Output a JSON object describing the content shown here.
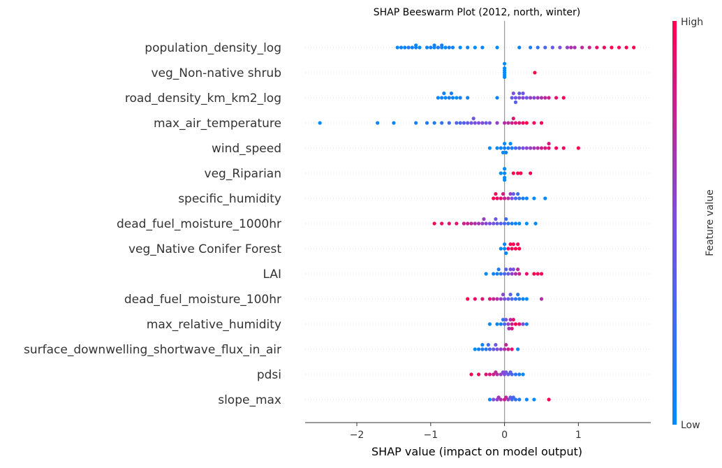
{
  "chart_data": {
    "type": "scatter",
    "title": "SHAP Beeswarm Plot (2012, north, winter)",
    "xlabel": "SHAP value (impact on model output)",
    "xlim": [
      -2.7,
      1.98
    ],
    "x_ticks": [
      -2,
      -1,
      0,
      1
    ],
    "x_tick_labels": [
      "−2",
      "−1",
      "0",
      "1"
    ],
    "colorbar": {
      "label": "Feature value",
      "high_label": "High",
      "low_label": "Low",
      "low_color": "#008afb",
      "mid_color": "#7a4fe0",
      "high_color": "#ff0051"
    },
    "zero_line_color": "#999999",
    "features": [
      {
        "name": "population_density_log",
        "points": [
          [
            -1.45,
            0.0
          ],
          [
            -1.4,
            0.1
          ],
          [
            -1.35,
            0.0
          ],
          [
            -1.3,
            0.15
          ],
          [
            -1.25,
            0.05
          ],
          [
            -1.2,
            0.1
          ],
          [
            -1.15,
            0.0
          ],
          [
            -1.05,
            0.05
          ],
          [
            -1.0,
            0.1
          ],
          [
            -0.95,
            0.0
          ],
          [
            -0.9,
            0.15
          ],
          [
            -0.85,
            0.05
          ],
          [
            -0.8,
            0.0
          ],
          [
            -0.75,
            0.1
          ],
          [
            -0.7,
            0.05
          ],
          [
            -0.6,
            0.0
          ],
          [
            -0.5,
            0.05
          ],
          [
            -0.4,
            0.0
          ],
          [
            -0.3,
            0.05
          ],
          [
            -0.1,
            0.0
          ],
          [
            0.2,
            0.05
          ],
          [
            0.35,
            0.1
          ],
          [
            0.45,
            0.2
          ],
          [
            0.55,
            0.3
          ],
          [
            0.65,
            0.4
          ],
          [
            0.75,
            0.5
          ],
          [
            0.85,
            0.6
          ],
          [
            0.95,
            0.65
          ],
          [
            1.05,
            0.75
          ],
          [
            1.15,
            0.8
          ],
          [
            1.25,
            0.9
          ],
          [
            1.35,
            0.95
          ],
          [
            1.45,
            1.0
          ],
          [
            1.55,
            0.95
          ],
          [
            1.65,
            1.0
          ],
          [
            1.75,
            1.0
          ],
          [
            -1.2,
            0.0
          ],
          [
            -0.95,
            0.05
          ],
          [
            -0.85,
            0.1
          ],
          [
            0.9,
            0.7
          ]
        ]
      },
      {
        "name": "veg_Non-native shrub ",
        "points": [
          [
            0.0,
            0.0
          ],
          [
            0.0,
            0.0
          ],
          [
            0.0,
            0.0
          ],
          [
            0.0,
            0.0
          ],
          [
            0.0,
            0.0
          ],
          [
            0.0,
            0.0
          ],
          [
            0.41,
            1.0
          ]
        ]
      },
      {
        "name": "road_density_km_km2_log",
        "points": [
          [
            -0.9,
            0.0
          ],
          [
            -0.85,
            0.05
          ],
          [
            -0.8,
            0.0
          ],
          [
            -0.75,
            0.1
          ],
          [
            -0.7,
            0.05
          ],
          [
            -0.65,
            0.0
          ],
          [
            -0.6,
            0.1
          ],
          [
            -0.5,
            0.05
          ],
          [
            -0.1,
            0.05
          ],
          [
            0.1,
            0.4
          ],
          [
            0.12,
            0.5
          ],
          [
            0.15,
            0.45
          ],
          [
            0.2,
            0.5
          ],
          [
            0.25,
            0.55
          ],
          [
            0.3,
            0.45
          ],
          [
            0.35,
            0.6
          ],
          [
            0.4,
            0.55
          ],
          [
            0.45,
            0.65
          ],
          [
            0.5,
            0.7
          ],
          [
            0.55,
            0.75
          ],
          [
            0.6,
            0.8
          ],
          [
            0.7,
            0.9
          ],
          [
            0.8,
            1.0
          ],
          [
            0.2,
            0.4
          ],
          [
            0.25,
            0.45
          ],
          [
            0.15,
            0.35
          ],
          [
            -0.82,
            0.05
          ],
          [
            -0.72,
            0.1
          ]
        ]
      },
      {
        "name": "max_air_temperature",
        "points": [
          [
            -2.5,
            0.0
          ],
          [
            -1.72,
            0.05
          ],
          [
            -1.5,
            0.05
          ],
          [
            -1.2,
            0.1
          ],
          [
            -1.05,
            0.15
          ],
          [
            -0.95,
            0.1
          ],
          [
            -0.85,
            0.2
          ],
          [
            -0.75,
            0.25
          ],
          [
            -0.6,
            0.3
          ],
          [
            -0.55,
            0.35
          ],
          [
            -0.5,
            0.4
          ],
          [
            -0.45,
            0.45
          ],
          [
            -0.4,
            0.5
          ],
          [
            -0.35,
            0.5
          ],
          [
            -0.3,
            0.55
          ],
          [
            -0.25,
            0.4
          ],
          [
            -0.2,
            0.5
          ],
          [
            -0.1,
            0.6
          ],
          [
            0.0,
            0.7
          ],
          [
            0.05,
            0.75
          ],
          [
            0.1,
            0.8
          ],
          [
            0.15,
            0.85
          ],
          [
            0.2,
            0.9
          ],
          [
            0.25,
            0.95
          ],
          [
            0.3,
            1.0
          ],
          [
            0.4,
            0.95
          ],
          [
            0.5,
            1.0
          ],
          [
            -0.65,
            0.35
          ],
          [
            -0.42,
            0.45
          ],
          [
            0.12,
            0.9
          ]
        ]
      },
      {
        "name": "wind_speed",
        "points": [
          [
            -0.2,
            0.0
          ],
          [
            -0.1,
            0.0
          ],
          [
            -0.05,
            0.05
          ],
          [
            0.0,
            0.05
          ],
          [
            0.05,
            0.1
          ],
          [
            0.08,
            0.0
          ],
          [
            0.1,
            0.15
          ],
          [
            0.15,
            0.3
          ],
          [
            0.2,
            0.4
          ],
          [
            0.25,
            0.5
          ],
          [
            0.3,
            0.55
          ],
          [
            0.35,
            0.6
          ],
          [
            0.4,
            0.65
          ],
          [
            0.45,
            0.7
          ],
          [
            0.5,
            0.8
          ],
          [
            0.55,
            0.85
          ],
          [
            0.6,
            0.9
          ],
          [
            0.7,
            0.95
          ],
          [
            0.8,
            0.95
          ],
          [
            1.0,
            1.0
          ],
          [
            0.0,
            0.0
          ],
          [
            0.02,
            0.05
          ],
          [
            -0.02,
            0.0
          ],
          [
            0.6,
            0.85
          ]
        ]
      },
      {
        "name": "veg_Riparian ",
        "points": [
          [
            -0.05,
            0.0
          ],
          [
            0.0,
            0.0
          ],
          [
            0.0,
            0.0
          ],
          [
            0.0,
            0.0
          ],
          [
            0.0,
            0.0
          ],
          [
            0.12,
            1.0
          ],
          [
            0.18,
            1.0
          ],
          [
            0.22,
            1.0
          ],
          [
            0.35,
            1.0
          ]
        ]
      },
      {
        "name": "specific_humidity",
        "points": [
          [
            -0.15,
            1.0
          ],
          [
            -0.1,
            0.95
          ],
          [
            -0.05,
            0.9
          ],
          [
            0.0,
            0.8
          ],
          [
            0.05,
            0.7
          ],
          [
            0.1,
            0.5
          ],
          [
            0.15,
            0.3
          ],
          [
            0.2,
            0.2
          ],
          [
            0.25,
            0.1
          ],
          [
            0.3,
            0.05
          ],
          [
            0.4,
            0.0
          ],
          [
            0.55,
            0.0
          ],
          [
            -0.12,
            0.95
          ],
          [
            0.08,
            0.6
          ],
          [
            0.12,
            0.4
          ],
          [
            0.18,
            0.25
          ],
          [
            -0.02,
            0.85
          ]
        ]
      },
      {
        "name": "dead_fuel_moisture_1000hr",
        "points": [
          [
            -0.95,
            1.0
          ],
          [
            -0.85,
            0.95
          ],
          [
            -0.75,
            0.9
          ],
          [
            -0.65,
            0.9
          ],
          [
            -0.55,
            0.8
          ],
          [
            -0.45,
            0.75
          ],
          [
            -0.4,
            0.7
          ],
          [
            -0.35,
            0.65
          ],
          [
            -0.3,
            0.6
          ],
          [
            -0.25,
            0.55
          ],
          [
            -0.2,
            0.5
          ],
          [
            -0.15,
            0.45
          ],
          [
            -0.1,
            0.4
          ],
          [
            -0.05,
            0.35
          ],
          [
            0.0,
            0.3
          ],
          [
            0.05,
            0.2
          ],
          [
            0.1,
            0.1
          ],
          [
            0.15,
            0.05
          ],
          [
            0.2,
            0.0
          ],
          [
            0.3,
            0.0
          ],
          [
            0.42,
            0.0
          ],
          [
            -0.5,
            0.8
          ],
          [
            -0.28,
            0.6
          ],
          [
            -0.12,
            0.45
          ],
          [
            0.02,
            0.25
          ]
        ]
      },
      {
        "name": "veg_Native Conifer Forest ",
        "points": [
          [
            -0.05,
            0.0
          ],
          [
            0.0,
            0.0
          ],
          [
            0.0,
            0.05
          ],
          [
            0.02,
            0.0
          ],
          [
            0.05,
            1.0
          ],
          [
            0.08,
            1.0
          ],
          [
            0.1,
            0.95
          ],
          [
            0.12,
            1.0
          ],
          [
            0.15,
            1.0
          ],
          [
            0.18,
            0.95
          ],
          [
            0.2,
            1.0
          ]
        ]
      },
      {
        "name": "LAI",
        "points": [
          [
            -0.25,
            0.0
          ],
          [
            -0.15,
            0.05
          ],
          [
            -0.1,
            0.1
          ],
          [
            -0.05,
            0.2
          ],
          [
            0.0,
            0.3
          ],
          [
            0.05,
            0.4
          ],
          [
            0.1,
            0.6
          ],
          [
            0.12,
            0.5
          ],
          [
            0.15,
            0.7
          ],
          [
            0.2,
            0.8
          ],
          [
            0.3,
            0.9
          ],
          [
            0.4,
            1.0
          ],
          [
            0.45,
            0.95
          ],
          [
            0.5,
            1.0
          ],
          [
            -0.08,
            0.15
          ],
          [
            0.08,
            0.5
          ],
          [
            0.18,
            0.75
          ],
          [
            0.02,
            0.35
          ]
        ]
      },
      {
        "name": "dead_fuel_moisture_100hr",
        "points": [
          [
            -0.5,
            1.0
          ],
          [
            -0.4,
            0.95
          ],
          [
            -0.3,
            0.9
          ],
          [
            -0.2,
            0.85
          ],
          [
            -0.1,
            0.7
          ],
          [
            -0.05,
            0.6
          ],
          [
            0.0,
            0.5
          ],
          [
            0.05,
            0.4
          ],
          [
            0.1,
            0.3
          ],
          [
            0.15,
            0.2
          ],
          [
            0.2,
            0.1
          ],
          [
            0.25,
            0.05
          ],
          [
            0.3,
            0.0
          ],
          [
            0.5,
            0.7
          ],
          [
            -0.15,
            0.8
          ],
          [
            0.08,
            0.35
          ],
          [
            -0.02,
            0.55
          ],
          [
            0.18,
            0.15
          ]
        ]
      },
      {
        "name": "max_relative_humidity",
        "points": [
          [
            -0.2,
            0.0
          ],
          [
            -0.1,
            0.05
          ],
          [
            -0.05,
            0.1
          ],
          [
            0.0,
            0.3
          ],
          [
            0.02,
            0.5
          ],
          [
            0.05,
            0.6
          ],
          [
            0.08,
            0.7
          ],
          [
            0.1,
            0.8
          ],
          [
            0.12,
            0.9
          ],
          [
            0.15,
            1.0
          ],
          [
            0.2,
            0.9
          ],
          [
            0.25,
            0.5
          ],
          [
            0.3,
            0.1
          ],
          [
            -0.02,
            0.2
          ],
          [
            0.06,
            0.65
          ],
          [
            0.1,
            0.85
          ]
        ]
      },
      {
        "name": "surface_downwelling_shortwave_flux_in_air",
        "points": [
          [
            -0.4,
            0.0
          ],
          [
            -0.35,
            0.05
          ],
          [
            -0.3,
            0.1
          ],
          [
            -0.25,
            0.2
          ],
          [
            -0.2,
            0.3
          ],
          [
            -0.15,
            0.4
          ],
          [
            -0.1,
            0.5
          ],
          [
            -0.05,
            0.6
          ],
          [
            0.0,
            0.7
          ],
          [
            0.05,
            0.8
          ],
          [
            0.1,
            0.9
          ],
          [
            0.18,
            0.0
          ],
          [
            -0.22,
            0.25
          ],
          [
            -0.12,
            0.45
          ],
          [
            0.02,
            0.75
          ],
          [
            -0.3,
            0.05
          ]
        ]
      },
      {
        "name": "pdsi",
        "points": [
          [
            -0.45,
            1.0
          ],
          [
            -0.35,
            0.95
          ],
          [
            -0.25,
            0.9
          ],
          [
            -0.2,
            0.85
          ],
          [
            -0.15,
            0.8
          ],
          [
            -0.1,
            0.7
          ],
          [
            -0.05,
            0.6
          ],
          [
            0.0,
            0.5
          ],
          [
            0.05,
            0.4
          ],
          [
            0.1,
            0.3
          ],
          [
            0.15,
            0.2
          ],
          [
            0.2,
            0.1
          ],
          [
            0.25,
            0.0
          ],
          [
            -0.12,
            0.75
          ],
          [
            0.02,
            0.45
          ],
          [
            0.08,
            0.35
          ],
          [
            -0.02,
            0.55
          ]
        ]
      },
      {
        "name": "slope_max",
        "points": [
          [
            -0.2,
            0.0
          ],
          [
            -0.15,
            0.5
          ],
          [
            -0.1,
            0.6
          ],
          [
            -0.05,
            0.7
          ],
          [
            0.0,
            0.8
          ],
          [
            0.05,
            0.6
          ],
          [
            0.08,
            0.4
          ],
          [
            0.1,
            0.3
          ],
          [
            0.15,
            0.2
          ],
          [
            0.2,
            0.1
          ],
          [
            0.3,
            0.05
          ],
          [
            0.4,
            0.0
          ],
          [
            0.6,
            1.0
          ],
          [
            -0.08,
            0.65
          ],
          [
            0.02,
            0.75
          ],
          [
            0.12,
            0.25
          ]
        ]
      }
    ]
  }
}
